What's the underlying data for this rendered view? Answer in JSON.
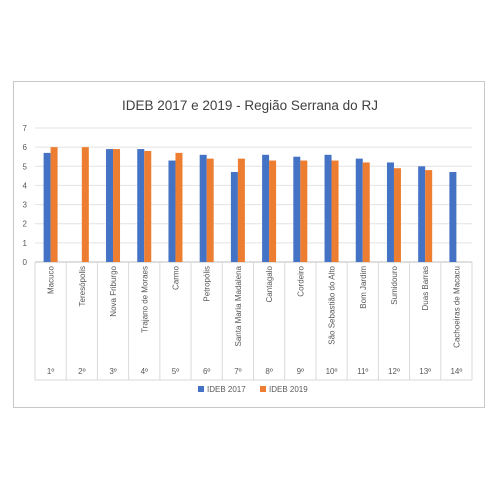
{
  "chart_data": {
    "type": "bar",
    "title": "IDEB 2017 e 2019 - Região Serrana do RJ",
    "xlabel": "",
    "ylabel": "",
    "ylim": [
      0,
      7
    ],
    "yticks": [
      0,
      1,
      2,
      3,
      4,
      5,
      6,
      7
    ],
    "grid": true,
    "legend_position": "bottom",
    "categories": [
      "Macuco",
      "Teresópolis",
      "Nova Friburgo",
      "Trajano de Moraes",
      "Carmo",
      "Petropólis",
      "Santa Maria Madalena",
      "Cantagalo",
      "Cordeiro",
      "São Sebastião do Alto",
      "Bom Jardim",
      "Sumidouro",
      "Duas Barras",
      "Cachoeiras de Macacu"
    ],
    "ranks": [
      "1º",
      "2º",
      "3º",
      "4º",
      "5º",
      "6º",
      "7º",
      "8º",
      "9º",
      "10º",
      "11º",
      "12º",
      "13º",
      "14º"
    ],
    "series": [
      {
        "name": "IDEB 2017",
        "color": "#4472c4",
        "values": [
          5.7,
          null,
          5.9,
          5.9,
          5.3,
          5.6,
          4.7,
          5.6,
          5.5,
          5.6,
          5.4,
          5.2,
          5.0,
          4.7
        ]
      },
      {
        "name": "IDEB 2019",
        "color": "#ed7d31",
        "values": [
          6.0,
          6.0,
          5.9,
          5.8,
          5.7,
          5.4,
          5.4,
          5.3,
          5.3,
          5.3,
          5.2,
          4.9,
          4.8,
          null
        ]
      }
    ]
  }
}
